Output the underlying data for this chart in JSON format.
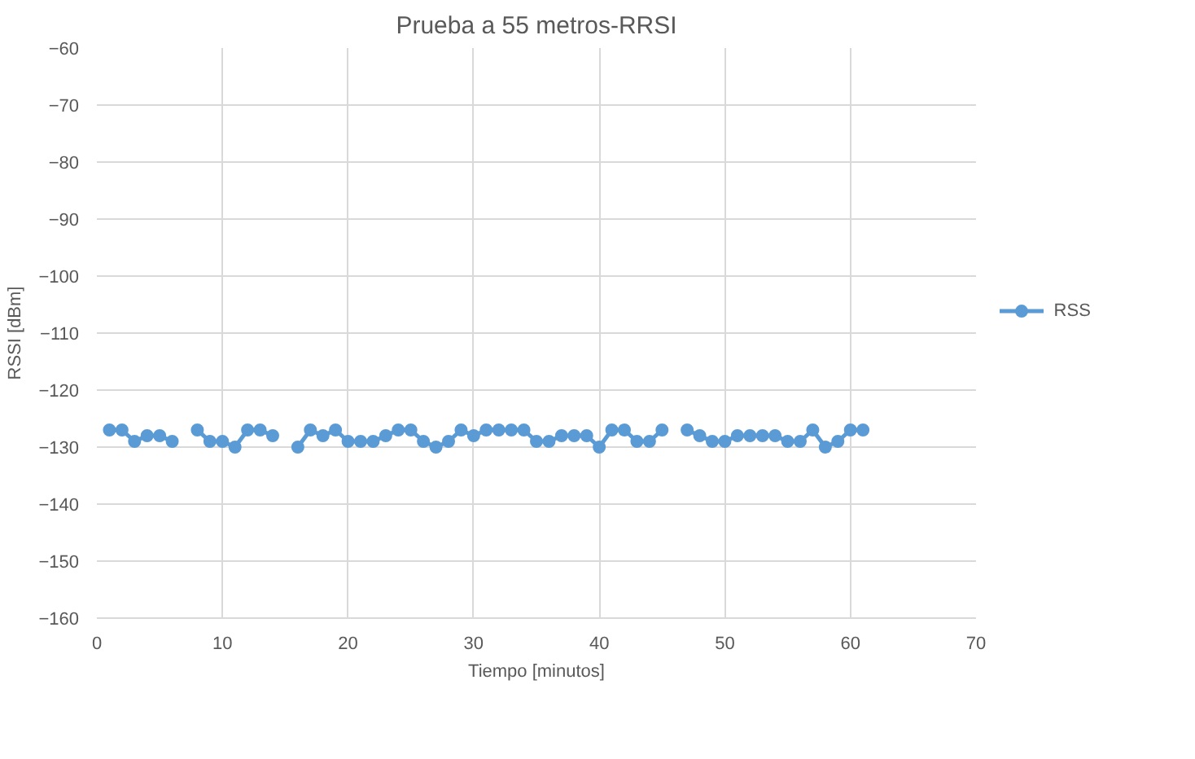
{
  "chart_data": {
    "type": "line",
    "title": "Prueba a 55 metros-RRSI",
    "xlabel": "Tiempo [minutos]",
    "ylabel": "RSSI [dBm]",
    "x": [
      1,
      2,
      3,
      4,
      5,
      6,
      7,
      8,
      9,
      10,
      11,
      12,
      13,
      14,
      15,
      16,
      17,
      18,
      19,
      20,
      21,
      22,
      23,
      24,
      25,
      26,
      27,
      28,
      29,
      30,
      31,
      32,
      33,
      34,
      35,
      36,
      37,
      38,
      39,
      40,
      41,
      42,
      43,
      44,
      45,
      46,
      47,
      48,
      49,
      50,
      51,
      52,
      53,
      54,
      55,
      56,
      57,
      58,
      59,
      60,
      61
    ],
    "series": [
      {
        "name": "RSS",
        "color": "#5b9bd5",
        "values": [
          -127,
          -127,
          -129,
          -128,
          -128,
          -129,
          null,
          -127,
          -129,
          -129,
          -130,
          -127,
          -127,
          -128,
          null,
          -130,
          -127,
          -128,
          -127,
          -129,
          -129,
          -129,
          -128,
          -127,
          -127,
          -129,
          -130,
          -129,
          -127,
          -128,
          -127,
          -127,
          -127,
          -127,
          -129,
          -129,
          -128,
          -128,
          -128,
          -130,
          -127,
          -127,
          -129,
          -129,
          -127,
          null,
          -127,
          -128,
          -129,
          -129,
          -128,
          -128,
          -128,
          -128,
          -129,
          -129,
          -127,
          -130,
          -129,
          -127,
          -127
        ]
      }
    ],
    "xlim": [
      0,
      70
    ],
    "xticks": [
      0,
      10,
      20,
      30,
      40,
      50,
      60,
      70
    ],
    "ylim": [
      -160,
      -60
    ],
    "yticks": [
      -160,
      -150,
      -140,
      -130,
      -120,
      -110,
      -100,
      -90,
      -80,
      -70,
      -60
    ],
    "grid": true,
    "legend": "right",
    "marker": "circle",
    "line_style": "solid"
  }
}
